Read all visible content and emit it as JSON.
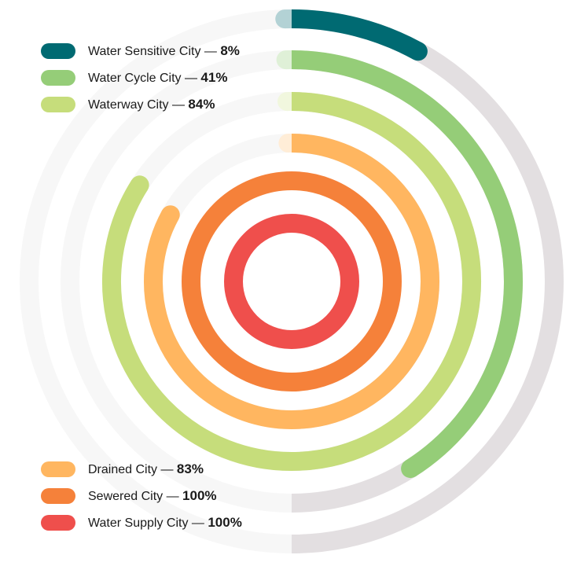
{
  "chart_data": {
    "type": "radial-bar",
    "title": "",
    "max": 100,
    "unit": "%",
    "track_colors": {
      "light": "#f7f7f7",
      "dark": "#e3dfe1"
    },
    "series": [
      {
        "name": "Water Sensitive City",
        "value": 8,
        "label": "8%",
        "color": "#006a72"
      },
      {
        "name": "Water Cycle City",
        "value": 41,
        "label": "41%",
        "color": "#95cd78"
      },
      {
        "name": "Waterway City",
        "value": 84,
        "label": "84%",
        "color": "#c6dd7b"
      },
      {
        "name": "Drained City",
        "value": 83,
        "label": "83%",
        "color": "#ffb660"
      },
      {
        "name": "Sewered City",
        "value": 100,
        "label": "100%",
        "color": "#f5813a"
      },
      {
        "name": "Water Supply City",
        "value": 100,
        "label": "100%",
        "color": "#ef4f4c"
      }
    ],
    "legend": {
      "top": [
        0,
        1,
        2
      ],
      "bottom": [
        3,
        4,
        5
      ]
    },
    "separator": " — "
  }
}
